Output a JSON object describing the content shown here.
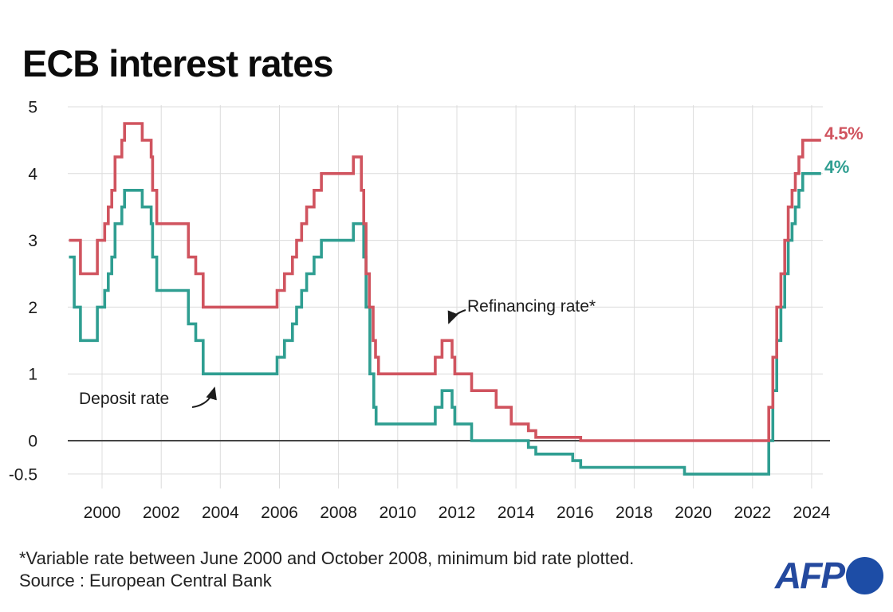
{
  "title": "ECB interest rates",
  "annotations": {
    "refinancing": {
      "label": "Refinancing rate*"
    },
    "deposit": {
      "label": "Deposit rate"
    }
  },
  "footnote": "*Variable rate between June 2000 and October 2008, minimum bid rate plotted.",
  "source": "Source : European Central Bank",
  "logo": {
    "text": "AFP"
  },
  "colors": {
    "refinancing": "#d0545f",
    "deposit": "#2f9e91",
    "grid": "#dcdcdc",
    "zero_line": "#454545",
    "tick_text": "#1a1a1a",
    "afp_blue": "#24499e"
  },
  "chart_data": {
    "type": "line",
    "subtype": "step-after",
    "title": "ECB interest rates",
    "unit": "percent",
    "grid": true,
    "xlim": [
      1998.88,
      2024.32
    ],
    "ylim": [
      -0.5,
      5
    ],
    "x_ticks": [
      2000,
      2002,
      2004,
      2006,
      2008,
      2010,
      2012,
      2014,
      2016,
      2018,
      2020,
      2022,
      2024
    ],
    "y_ticks": [
      5,
      4,
      3,
      2,
      1,
      0,
      -0.5
    ],
    "y_tick_labels": [
      "5",
      "4",
      "3",
      "2",
      "1",
      "0",
      "-0.5"
    ],
    "end_year": 2024.32,
    "series": [
      {
        "name": "Refinancing rate",
        "color_key": "refinancing",
        "end_label": "4.5%",
        "final_value": 4.5,
        "points": [
          [
            1998.88,
            3.0
          ],
          [
            1999.27,
            2.5
          ],
          [
            1999.84,
            3.0
          ],
          [
            2000.09,
            3.25
          ],
          [
            2000.21,
            3.5
          ],
          [
            2000.33,
            3.75
          ],
          [
            2000.44,
            4.25
          ],
          [
            2000.67,
            4.5
          ],
          [
            2000.76,
            4.75
          ],
          [
            2001.36,
            4.5
          ],
          [
            2001.66,
            4.25
          ],
          [
            2001.71,
            3.75
          ],
          [
            2001.85,
            3.25
          ],
          [
            2002.92,
            2.75
          ],
          [
            2003.17,
            2.5
          ],
          [
            2003.42,
            2.0
          ],
          [
            2005.92,
            2.25
          ],
          [
            2006.17,
            2.5
          ],
          [
            2006.44,
            2.75
          ],
          [
            2006.58,
            3.0
          ],
          [
            2006.75,
            3.25
          ],
          [
            2006.92,
            3.5
          ],
          [
            2007.17,
            3.75
          ],
          [
            2007.42,
            4.0
          ],
          [
            2008.5,
            4.25
          ],
          [
            2008.77,
            3.75
          ],
          [
            2008.85,
            3.25
          ],
          [
            2008.93,
            2.5
          ],
          [
            2009.04,
            2.0
          ],
          [
            2009.17,
            1.5
          ],
          [
            2009.25,
            1.25
          ],
          [
            2009.35,
            1.0
          ],
          [
            2011.27,
            1.25
          ],
          [
            2011.5,
            1.5
          ],
          [
            2011.84,
            1.25
          ],
          [
            2011.93,
            1.0
          ],
          [
            2012.5,
            0.75
          ],
          [
            2013.33,
            0.5
          ],
          [
            2013.84,
            0.25
          ],
          [
            2014.42,
            0.15
          ],
          [
            2014.67,
            0.05
          ],
          [
            2016.19,
            0.0
          ],
          [
            2022.55,
            0.5
          ],
          [
            2022.69,
            1.25
          ],
          [
            2022.82,
            2.0
          ],
          [
            2022.96,
            2.5
          ],
          [
            2023.09,
            3.0
          ],
          [
            2023.21,
            3.5
          ],
          [
            2023.34,
            3.75
          ],
          [
            2023.45,
            4.0
          ],
          [
            2023.57,
            4.25
          ],
          [
            2023.7,
            4.5
          ]
        ]
      },
      {
        "name": "Deposit rate",
        "color_key": "deposit",
        "end_label": "4%",
        "final_value": 4.0,
        "points": [
          [
            1998.88,
            2.75
          ],
          [
            1999.06,
            2.0
          ],
          [
            1999.27,
            1.5
          ],
          [
            1999.84,
            2.0
          ],
          [
            2000.09,
            2.25
          ],
          [
            2000.21,
            2.5
          ],
          [
            2000.33,
            2.75
          ],
          [
            2000.44,
            3.25
          ],
          [
            2000.67,
            3.5
          ],
          [
            2000.76,
            3.75
          ],
          [
            2001.36,
            3.5
          ],
          [
            2001.66,
            3.25
          ],
          [
            2001.71,
            2.75
          ],
          [
            2001.85,
            2.25
          ],
          [
            2002.92,
            1.75
          ],
          [
            2003.17,
            1.5
          ],
          [
            2003.42,
            1.0
          ],
          [
            2005.92,
            1.25
          ],
          [
            2006.17,
            1.5
          ],
          [
            2006.44,
            1.75
          ],
          [
            2006.58,
            2.0
          ],
          [
            2006.75,
            2.25
          ],
          [
            2006.92,
            2.5
          ],
          [
            2007.17,
            2.75
          ],
          [
            2007.42,
            3.0
          ],
          [
            2008.5,
            3.25
          ],
          [
            2008.85,
            2.75
          ],
          [
            2008.93,
            2.0
          ],
          [
            2009.06,
            1.0
          ],
          [
            2009.19,
            0.5
          ],
          [
            2009.27,
            0.25
          ],
          [
            2011.27,
            0.5
          ],
          [
            2011.5,
            0.75
          ],
          [
            2011.84,
            0.5
          ],
          [
            2011.93,
            0.25
          ],
          [
            2012.5,
            0.0
          ],
          [
            2014.42,
            -0.1
          ],
          [
            2014.67,
            -0.2
          ],
          [
            2015.92,
            -0.3
          ],
          [
            2016.19,
            -0.4
          ],
          [
            2019.7,
            -0.5
          ],
          [
            2022.55,
            0.0
          ],
          [
            2022.69,
            0.75
          ],
          [
            2022.82,
            1.5
          ],
          [
            2022.96,
            2.0
          ],
          [
            2023.09,
            2.5
          ],
          [
            2023.21,
            3.0
          ],
          [
            2023.34,
            3.25
          ],
          [
            2023.45,
            3.5
          ],
          [
            2023.57,
            3.75
          ],
          [
            2023.7,
            4.0
          ]
        ]
      }
    ]
  }
}
